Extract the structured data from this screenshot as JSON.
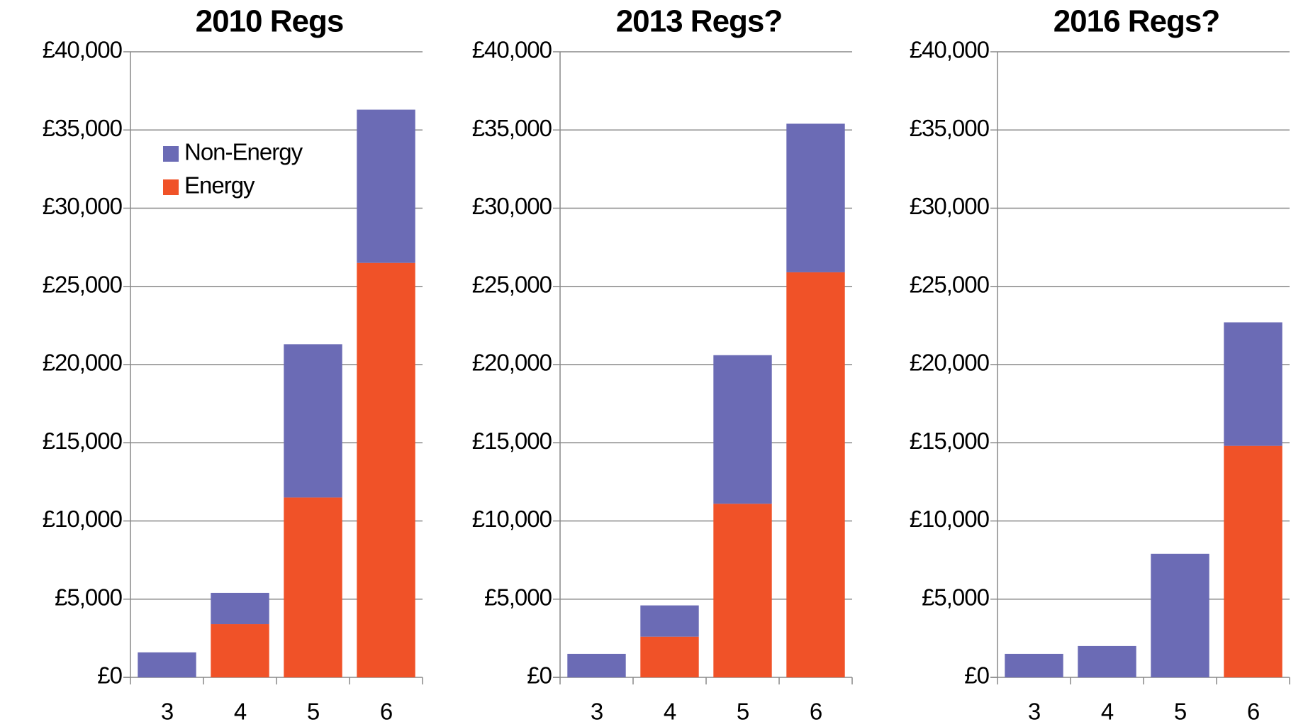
{
  "chart_data": [
    {
      "type": "bar",
      "title": "2010 Regs",
      "categories": [
        "3",
        "4",
        "5",
        "6"
      ],
      "legend": "upper left",
      "series": [
        {
          "name": "Energy",
          "color": "#f05228",
          "values": [
            0,
            3400,
            11500,
            26500
          ]
        },
        {
          "name": "Non-Energy",
          "color": "#6b6bb5",
          "values": [
            1600,
            2000,
            9800,
            9800
          ]
        }
      ],
      "ylim": [
        0,
        40000
      ],
      "yticks": [
        {
          "value": 0,
          "label": "£0"
        },
        {
          "value": 5000,
          "label": "£5,000"
        },
        {
          "value": 10000,
          "label": "£10,000"
        },
        {
          "value": 15000,
          "label": "£15,000"
        },
        {
          "value": 20000,
          "label": "£20,000"
        },
        {
          "value": 25000,
          "label": "£25,000"
        },
        {
          "value": 30000,
          "label": "£30,000"
        },
        {
          "value": 35000,
          "label": "£35,000"
        },
        {
          "value": 40000,
          "label": "£40,000"
        }
      ],
      "grid": true
    },
    {
      "type": "bar",
      "title": "2013 Regs?",
      "categories": [
        "3",
        "4",
        "5",
        "6"
      ],
      "series": [
        {
          "color": "#f05228",
          "values": [
            0,
            2600,
            11100,
            25900
          ]
        },
        {
          "color": "#6b6bb5",
          "values": [
            1500,
            2000,
            9500,
            9500
          ]
        }
      ],
      "ylim": [
        0,
        40000
      ],
      "yticks": [
        {
          "value": 0,
          "label": "£0"
        },
        {
          "value": 5000,
          "label": "£5,000"
        },
        {
          "value": 10000,
          "label": "£10,000"
        },
        {
          "value": 15000,
          "label": "£15,000"
        },
        {
          "value": 20000,
          "label": "£20,000"
        },
        {
          "value": 25000,
          "label": "£25,000"
        },
        {
          "value": 30000,
          "label": "£30,000"
        },
        {
          "value": 35000,
          "label": "£35,000"
        },
        {
          "value": 40000,
          "label": "£40,000"
        }
      ],
      "grid": true
    },
    {
      "type": "bar",
      "title": "2016 Regs?",
      "categories": [
        "3",
        "4",
        "5",
        "6"
      ],
      "series": [
        {
          "color": "#f05228",
          "values": [
            0,
            0,
            0,
            14800
          ]
        },
        {
          "color": "#6b6bb5",
          "values": [
            1500,
            2000,
            7900,
            7900
          ]
        }
      ],
      "ylim": [
        0,
        40000
      ],
      "yticks": [
        {
          "value": 0,
          "label": "£0"
        },
        {
          "value": 5000,
          "label": "£5,000"
        },
        {
          "value": 10000,
          "label": "£10,000"
        },
        {
          "value": 15000,
          "label": "£15,000"
        },
        {
          "value": 20000,
          "label": "£20,000"
        },
        {
          "value": 25000,
          "label": "£25,000"
        },
        {
          "value": 30000,
          "label": "£30,000"
        },
        {
          "value": 35000,
          "label": "£35,000"
        },
        {
          "value": 40000,
          "label": "£40,000"
        }
      ],
      "grid": true
    }
  ]
}
